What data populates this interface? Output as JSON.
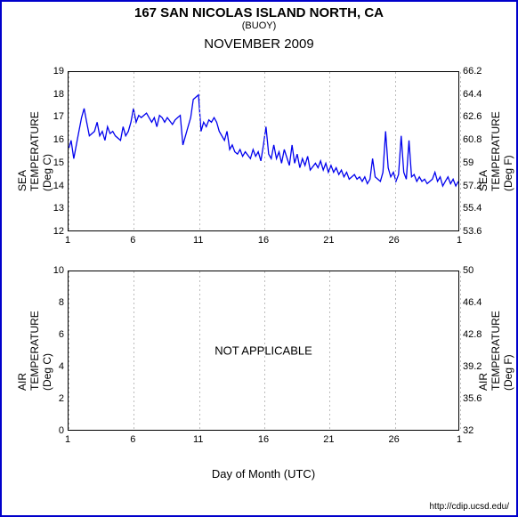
{
  "header": {
    "title": "167 SAN NICOLAS ISLAND NORTH, CA",
    "subtitle": "(BUOY)",
    "period": "NOVEMBER 2009"
  },
  "credit": "http://cdip.ucsd.edu/",
  "x_axis": {
    "label": "Day of Month (UTC)",
    "ticks": [
      1,
      6,
      11,
      16,
      21,
      26,
      1
    ],
    "min": 1,
    "max": 31
  },
  "chart_sea": {
    "y_left": {
      "label": "SEA TEMPERATURE (Deg C)",
      "min": 12,
      "max": 19,
      "step": 1
    },
    "y_right": {
      "label": "SEA TEMPERATURE (Deg F)",
      "ticks": [
        53.6,
        55.4,
        57.2,
        59,
        60.8,
        62.6,
        64.4,
        66.2
      ]
    },
    "series_color": "#0000ee",
    "series": [
      [
        1.0,
        15.6
      ],
      [
        1.2,
        16.0
      ],
      [
        1.4,
        15.2
      ],
      [
        1.6,
        15.8
      ],
      [
        1.8,
        16.4
      ],
      [
        2.0,
        17.0
      ],
      [
        2.2,
        17.4
      ],
      [
        2.4,
        16.8
      ],
      [
        2.6,
        16.2
      ],
      [
        3.0,
        16.4
      ],
      [
        3.2,
        16.8
      ],
      [
        3.4,
        16.2
      ],
      [
        3.6,
        16.4
      ],
      [
        3.8,
        16.0
      ],
      [
        4.0,
        16.6
      ],
      [
        4.2,
        16.3
      ],
      [
        4.4,
        16.4
      ],
      [
        4.6,
        16.2
      ],
      [
        5.0,
        16.0
      ],
      [
        5.2,
        16.6
      ],
      [
        5.4,
        16.2
      ],
      [
        5.6,
        16.4
      ],
      [
        5.8,
        16.8
      ],
      [
        6.0,
        17.4
      ],
      [
        6.2,
        16.8
      ],
      [
        6.4,
        17.1
      ],
      [
        6.6,
        17.0
      ],
      [
        7.0,
        17.2
      ],
      [
        7.2,
        17.0
      ],
      [
        7.4,
        16.8
      ],
      [
        7.6,
        17.0
      ],
      [
        7.8,
        16.6
      ],
      [
        8.0,
        17.1
      ],
      [
        8.2,
        17.0
      ],
      [
        8.4,
        16.8
      ],
      [
        8.6,
        17.0
      ],
      [
        9.0,
        16.7
      ],
      [
        9.2,
        16.9
      ],
      [
        9.4,
        17.0
      ],
      [
        9.6,
        17.1
      ],
      [
        9.8,
        15.8
      ],
      [
        10.0,
        16.2
      ],
      [
        10.2,
        16.6
      ],
      [
        10.4,
        17.0
      ],
      [
        10.6,
        17.8
      ],
      [
        11.0,
        18.0
      ],
      [
        11.2,
        16.4
      ],
      [
        11.4,
        16.8
      ],
      [
        11.6,
        16.6
      ],
      [
        11.8,
        16.9
      ],
      [
        12.0,
        16.8
      ],
      [
        12.2,
        17.0
      ],
      [
        12.4,
        16.8
      ],
      [
        12.6,
        16.4
      ],
      [
        13.0,
        16.0
      ],
      [
        13.2,
        16.4
      ],
      [
        13.4,
        15.6
      ],
      [
        13.6,
        15.8
      ],
      [
        13.8,
        15.5
      ],
      [
        14.0,
        15.4
      ],
      [
        14.2,
        15.6
      ],
      [
        14.4,
        15.3
      ],
      [
        14.6,
        15.5
      ],
      [
        15.0,
        15.2
      ],
      [
        15.2,
        15.6
      ],
      [
        15.4,
        15.3
      ],
      [
        15.6,
        15.5
      ],
      [
        15.8,
        15.1
      ],
      [
        16.0,
        15.8
      ],
      [
        16.2,
        16.6
      ],
      [
        16.4,
        15.4
      ],
      [
        16.6,
        15.2
      ],
      [
        16.8,
        15.8
      ],
      [
        17.0,
        15.2
      ],
      [
        17.2,
        15.5
      ],
      [
        17.4,
        15.0
      ],
      [
        17.6,
        15.6
      ],
      [
        18.0,
        14.9
      ],
      [
        18.2,
        15.8
      ],
      [
        18.4,
        15.0
      ],
      [
        18.6,
        15.4
      ],
      [
        18.8,
        14.8
      ],
      [
        19.0,
        15.2
      ],
      [
        19.2,
        14.9
      ],
      [
        19.4,
        15.3
      ],
      [
        19.6,
        14.7
      ],
      [
        20.0,
        15.0
      ],
      [
        20.2,
        14.8
      ],
      [
        20.4,
        15.1
      ],
      [
        20.6,
        14.7
      ],
      [
        20.8,
        15.0
      ],
      [
        21.0,
        14.6
      ],
      [
        21.2,
        14.9
      ],
      [
        21.4,
        14.6
      ],
      [
        21.6,
        14.8
      ],
      [
        21.8,
        14.5
      ],
      [
        22.0,
        14.7
      ],
      [
        22.2,
        14.4
      ],
      [
        22.4,
        14.6
      ],
      [
        22.6,
        14.3
      ],
      [
        23.0,
        14.5
      ],
      [
        23.2,
        14.3
      ],
      [
        23.4,
        14.4
      ],
      [
        23.6,
        14.2
      ],
      [
        23.8,
        14.4
      ],
      [
        24.0,
        14.1
      ],
      [
        24.2,
        14.3
      ],
      [
        24.4,
        15.2
      ],
      [
        24.6,
        14.4
      ],
      [
        25.0,
        14.2
      ],
      [
        25.2,
        14.6
      ],
      [
        25.4,
        16.4
      ],
      [
        25.6,
        14.8
      ],
      [
        25.8,
        14.4
      ],
      [
        26.0,
        14.6
      ],
      [
        26.2,
        14.2
      ],
      [
        26.4,
        14.5
      ],
      [
        26.6,
        16.2
      ],
      [
        26.8,
        14.6
      ],
      [
        27.0,
        14.3
      ],
      [
        27.2,
        16.0
      ],
      [
        27.4,
        14.4
      ],
      [
        27.6,
        14.5
      ],
      [
        27.8,
        14.2
      ],
      [
        28.0,
        14.4
      ],
      [
        28.2,
        14.2
      ],
      [
        28.4,
        14.3
      ],
      [
        28.6,
        14.1
      ],
      [
        29.0,
        14.3
      ],
      [
        29.2,
        14.6
      ],
      [
        29.4,
        14.2
      ],
      [
        29.6,
        14.4
      ],
      [
        29.8,
        14.0
      ],
      [
        30.0,
        14.2
      ],
      [
        30.2,
        14.4
      ],
      [
        30.4,
        14.1
      ],
      [
        30.6,
        14.3
      ],
      [
        30.8,
        14.0
      ],
      [
        31.0,
        14.2
      ]
    ]
  },
  "chart_air": {
    "y_left": {
      "label": "AIR TEMPERATURE (Deg C)",
      "min": 0,
      "max": 10,
      "step": 2
    },
    "y_right": {
      "label": "AIR TEMPERATURE (Deg F)",
      "ticks": [
        32,
        35.6,
        39.2,
        42.8,
        46.4,
        50
      ]
    },
    "annotation": "NOT APPLICABLE"
  },
  "style": {
    "grid_dash_color": "#bbbbbb",
    "border_color": "#0000cc",
    "font": "Arial"
  }
}
